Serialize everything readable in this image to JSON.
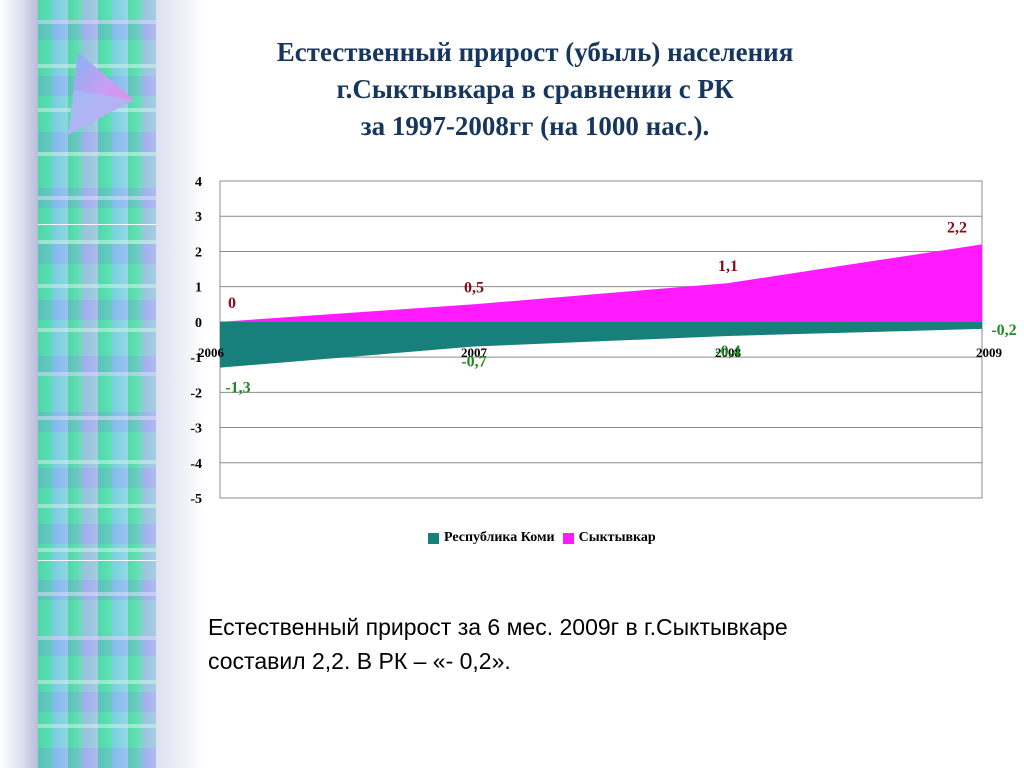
{
  "title": {
    "line1": "Естественный прирост (убыль) населения",
    "line2": "г.Сыктывкара в сравнении с РК",
    "line3": "за 1997-2008гг (на 1000 нас.)."
  },
  "chart_data": {
    "type": "area",
    "x": [
      "2006",
      "2007",
      "2008",
      "2009"
    ],
    "yticks": [
      "4",
      "3",
      "2",
      "1",
      "0",
      "-1",
      "-2",
      "-3",
      "-4",
      "-5"
    ],
    "ylim": [
      -5,
      4
    ],
    "grid": true,
    "legend_position": "bottom",
    "series": [
      {
        "name": "Республика Коми",
        "values": [
          -1.3,
          -0.7,
          -0.4,
          -0.2
        ],
        "labels": [
          "-1,3",
          "-0,7",
          "-0,4",
          "-0,2"
        ],
        "color": "#17807c",
        "label_color": "#1f8a1f"
      },
      {
        "name": "Сыктывкар",
        "values": [
          0,
          0.5,
          1.1,
          2.2
        ],
        "labels": [
          "0",
          "0,5",
          "1,1",
          "2,2"
        ],
        "color": "#ff1aff",
        "label_color": "#8b0a1a"
      }
    ]
  },
  "note": {
    "line1": "Естественный прирост за 6 мес. 2009г в г.Сыктывкаре",
    "line2": "составил 2,2. В РК – «- 0,2»."
  }
}
